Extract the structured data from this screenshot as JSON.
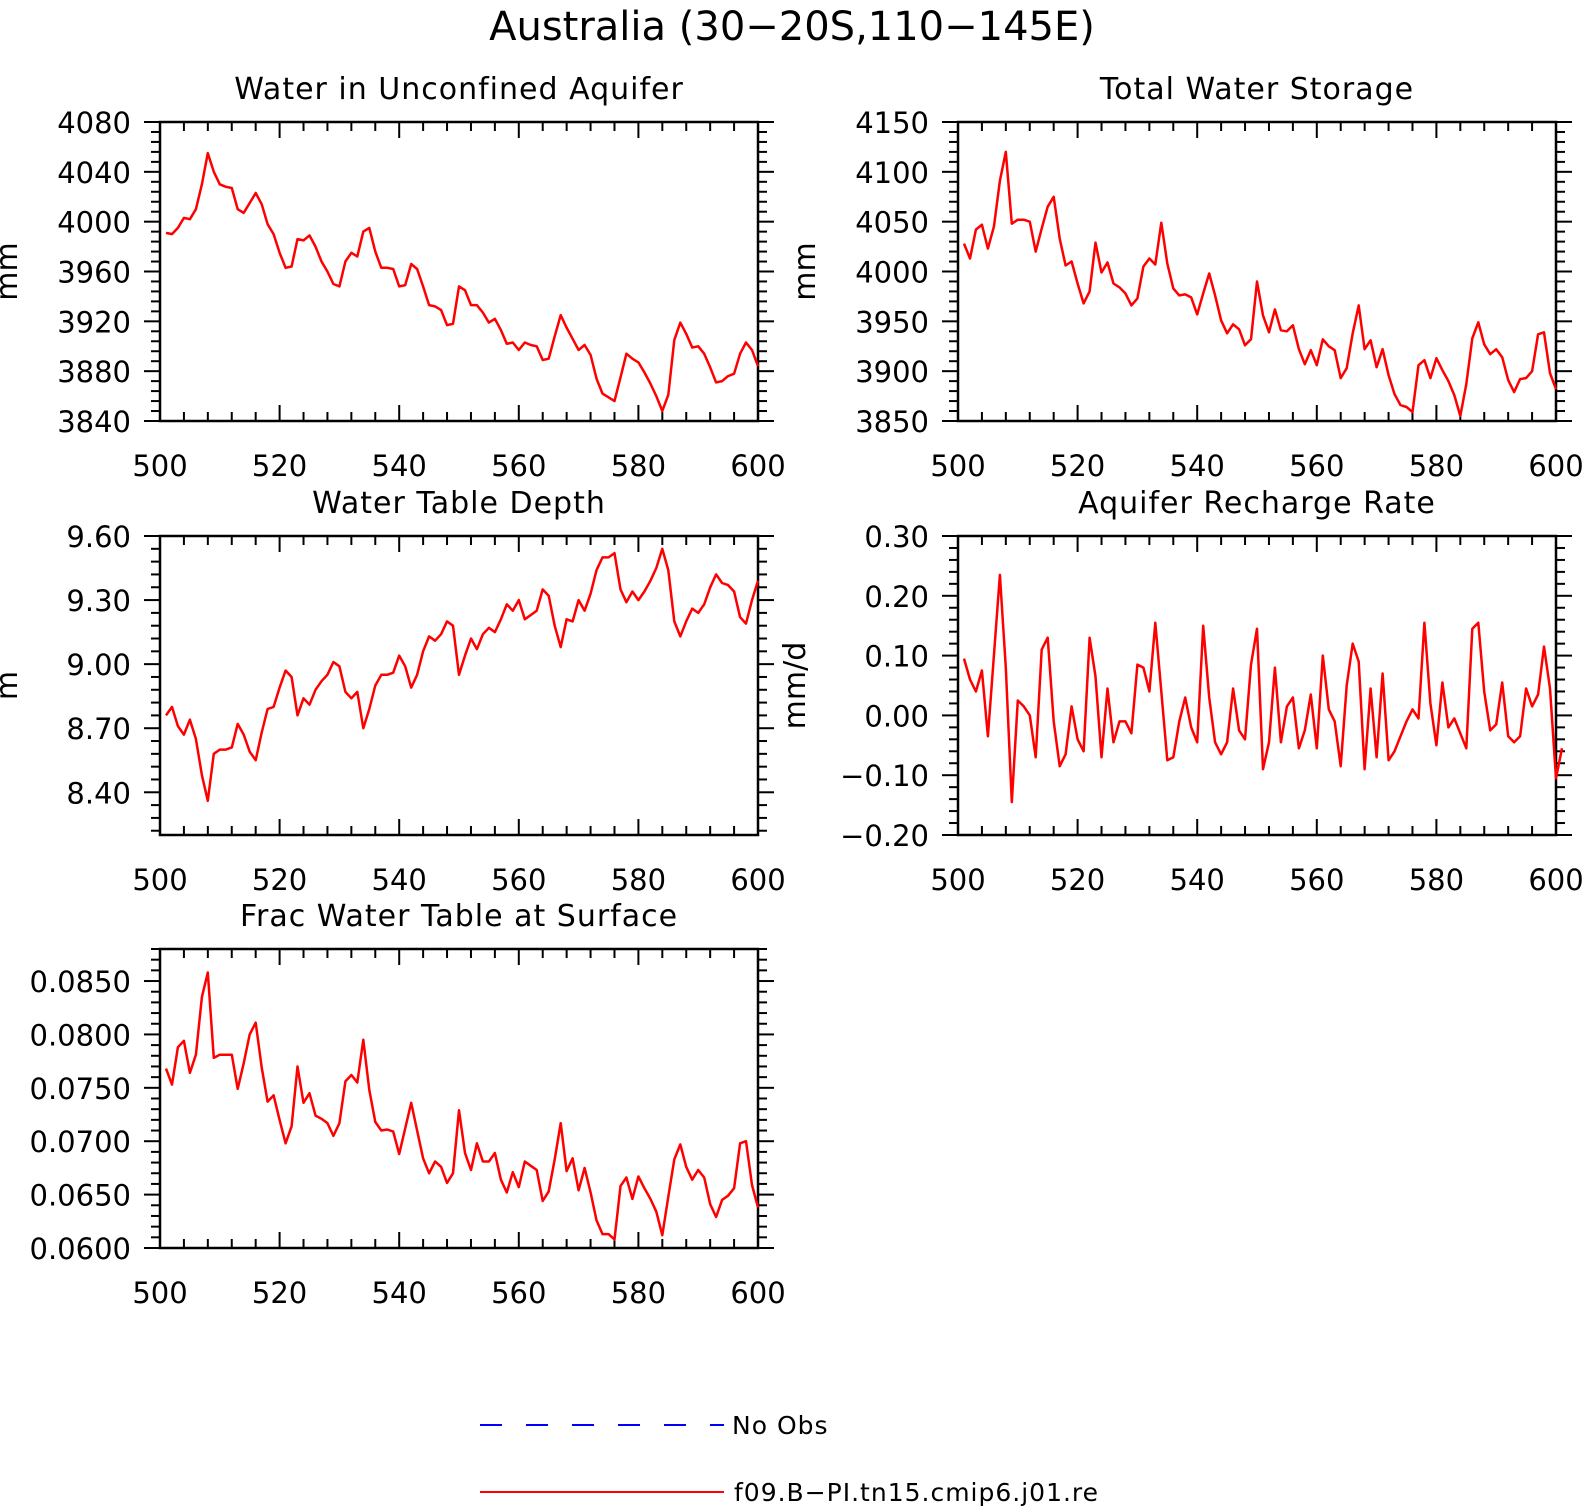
{
  "figure": {
    "title": "Australia (30−20S,110−145E)"
  },
  "legend": {
    "entries": [
      {
        "label": "No Obs",
        "color": "#0000ff",
        "style": "dashed"
      },
      {
        "label": "f09.B−PI.tn15.cmip6.j01.re",
        "color": "#ff0000",
        "style": "solid"
      }
    ]
  },
  "chart_data": [
    {
      "type": "line",
      "title": "Water in Unconfined Aquifer",
      "ylabel": "mm",
      "xlabel": "",
      "xlim": [
        500,
        600
      ],
      "ylim": [
        3840,
        4080
      ],
      "xticks": [
        500,
        520,
        540,
        560,
        580,
        600
      ],
      "yticks": [
        "3840",
        "3880",
        "3920",
        "3960",
        "4000",
        "4040",
        "4080"
      ],
      "x_start": 501,
      "series": [
        {
          "color": "#ff0000",
          "values": [
            3991,
            3990,
            3995,
            4003,
            4002,
            4010,
            4030,
            4055,
            4040,
            4030,
            4028,
            4027,
            4010,
            4007,
            4015,
            4023,
            4014,
            3998,
            3990,
            3975,
            3963,
            3964,
            3986,
            3985,
            3989,
            3980,
            3968,
            3960,
            3950,
            3948,
            3968,
            3975,
            3972,
            3992,
            3995,
            3976,
            3963,
            3963,
            3962,
            3948,
            3949,
            3966,
            3962,
            3948,
            3933,
            3932,
            3929,
            3917,
            3918,
            3948,
            3945,
            3933,
            3933,
            3927,
            3919,
            3922,
            3913,
            3902,
            3903,
            3897,
            3903,
            3901,
            3900,
            3889,
            3890,
            3908,
            3925,
            3915,
            3906,
            3897,
            3901,
            3893,
            3874,
            3862,
            3859,
            3856,
            3875,
            3894,
            3890,
            3887,
            3879,
            3870,
            3860,
            3848,
            3861,
            3905,
            3919,
            3910,
            3899,
            3900,
            3894,
            3883,
            3871,
            3872,
            3876,
            3878,
            3894,
            3903,
            3897,
            3884
          ]
        }
      ]
    },
    {
      "type": "line",
      "title": "Total Water Storage",
      "ylabel": "mm",
      "xlabel": "",
      "xlim": [
        500,
        600
      ],
      "ylim": [
        3850,
        4150
      ],
      "xticks": [
        500,
        520,
        540,
        560,
        580,
        600
      ],
      "yticks": [
        "3850",
        "3900",
        "3950",
        "4000",
        "4050",
        "4100",
        "4150"
      ],
      "x_start": 501,
      "series": [
        {
          "color": "#ff0000",
          "values": [
            4028,
            4013,
            4042,
            4047,
            4023,
            4045,
            4091,
            4120,
            4048,
            4052,
            4052,
            4050,
            4020,
            4043,
            4065,
            4075,
            4033,
            4006,
            4010,
            3988,
            3968,
            3980,
            4029,
            3999,
            4009,
            3988,
            3984,
            3978,
            3966,
            3973,
            4005,
            4013,
            4007,
            4049,
            4008,
            3983,
            3976,
            3977,
            3974,
            3957,
            3978,
            3998,
            3976,
            3951,
            3938,
            3947,
            3942,
            3926,
            3932,
            3990,
            3956,
            3939,
            3962,
            3941,
            3940,
            3946,
            3922,
            3907,
            3921,
            3906,
            3932,
            3925,
            3921,
            3893,
            3903,
            3938,
            3966,
            3922,
            3931,
            3904,
            3922,
            3896,
            3877,
            3866,
            3864,
            3859,
            3906,
            3911,
            3893,
            3913,
            3901,
            3890,
            3876,
            3855,
            3887,
            3933,
            3949,
            3927,
            3917,
            3922,
            3914,
            3891,
            3879,
            3892,
            3893,
            3900,
            3937,
            3939,
            3898,
            3882
          ]
        }
      ]
    },
    {
      "type": "line",
      "title": "Water Table Depth",
      "ylabel": "m",
      "xlabel": "",
      "xlim": [
        500,
        600
      ],
      "ylim": [
        8.2,
        9.6
      ],
      "xticks": [
        500,
        520,
        540,
        560,
        580,
        600
      ],
      "yticks": [
        "8.40",
        "8.70",
        "9.00",
        "9.30",
        "9.60"
      ],
      "x_start": 501,
      "series": [
        {
          "color": "#ff0000",
          "values": [
            8.76,
            8.8,
            8.71,
            8.67,
            8.74,
            8.65,
            8.48,
            8.36,
            8.58,
            8.6,
            8.6,
            8.61,
            8.72,
            8.67,
            8.59,
            8.55,
            8.68,
            8.79,
            8.8,
            8.89,
            8.97,
            8.94,
            8.76,
            8.84,
            8.81,
            8.88,
            8.92,
            8.95,
            9.01,
            8.99,
            8.87,
            8.84,
            8.87,
            8.7,
            8.79,
            8.9,
            8.95,
            8.95,
            8.96,
            9.04,
            8.99,
            8.89,
            8.95,
            9.06,
            9.13,
            9.11,
            9.14,
            9.2,
            9.18,
            8.95,
            9.04,
            9.12,
            9.07,
            9.14,
            9.17,
            9.15,
            9.21,
            9.28,
            9.25,
            9.3,
            9.21,
            9.23,
            9.25,
            9.35,
            9.32,
            9.18,
            9.08,
            9.21,
            9.2,
            9.3,
            9.25,
            9.33,
            9.44,
            9.5,
            9.5,
            9.52,
            9.35,
            9.29,
            9.34,
            9.3,
            9.34,
            9.39,
            9.45,
            9.54,
            9.44,
            9.2,
            9.13,
            9.2,
            9.26,
            9.24,
            9.28,
            9.36,
            9.42,
            9.38,
            9.37,
            9.34,
            9.22,
            9.19,
            9.3,
            9.39
          ]
        }
      ]
    },
    {
      "type": "line",
      "title": "Aquifer Recharge Rate",
      "ylabel": "mm/d",
      "xlabel": "",
      "xlim": [
        500,
        600
      ],
      "ylim": [
        -0.2,
        0.3
      ],
      "xticks": [
        500,
        520,
        540,
        560,
        580,
        600
      ],
      "yticks": [
        "−0.20",
        "−0.10",
        "0.00",
        "0.10",
        "0.20",
        "0.30"
      ],
      "x_start": 501,
      "series": [
        {
          "color": "#ff0000",
          "values": [
            0.095,
            0.06,
            0.04,
            0.075,
            -0.035,
            0.1,
            0.235,
            0.08,
            -0.145,
            0.025,
            0.015,
            0.0,
            -0.07,
            0.11,
            0.13,
            -0.01,
            -0.085,
            -0.065,
            0.015,
            -0.04,
            -0.06,
            0.13,
            0.065,
            -0.07,
            0.045,
            -0.045,
            -0.01,
            -0.01,
            -0.03,
            0.085,
            0.08,
            0.04,
            0.155,
            0.04,
            -0.075,
            -0.07,
            -0.01,
            0.03,
            -0.02,
            -0.045,
            0.15,
            0.03,
            -0.045,
            -0.065,
            -0.045,
            0.045,
            -0.025,
            -0.04,
            0.085,
            0.145,
            -0.09,
            -0.045,
            0.08,
            -0.045,
            0.015,
            0.03,
            -0.055,
            -0.025,
            0.035,
            -0.055,
            0.1,
            0.01,
            -0.01,
            -0.085,
            0.05,
            0.12,
            0.09,
            -0.09,
            0.045,
            -0.07,
            0.07,
            -0.075,
            -0.06,
            -0.035,
            -0.01,
            0.01,
            -0.005,
            0.155,
            0.02,
            -0.05,
            0.055,
            -0.02,
            -0.005,
            -0.03,
            -0.055,
            0.145,
            0.155,
            0.04,
            -0.025,
            -0.015,
            0.055,
            -0.035,
            -0.045,
            -0.035,
            0.045,
            0.015,
            0.035,
            0.115,
            0.045,
            -0.105,
            -0.055
          ]
        }
      ]
    },
    {
      "type": "line",
      "title": "Frac Water Table at Surface",
      "ylabel": "",
      "xlabel": "",
      "xlim": [
        500,
        600
      ],
      "ylim": [
        0.06,
        0.088
      ],
      "xticks": [
        500,
        520,
        540,
        560,
        580,
        600
      ],
      "yticks": [
        "0.0600",
        "0.0650",
        "0.0700",
        "0.0750",
        "0.0800",
        "0.0850"
      ],
      "x_start": 501,
      "series": [
        {
          "color": "#ff0000",
          "values": [
            0.0768,
            0.0753,
            0.0788,
            0.0794,
            0.0764,
            0.0781,
            0.0835,
            0.0858,
            0.0778,
            0.0781,
            0.0781,
            0.0781,
            0.0749,
            0.0773,
            0.08,
            0.0811,
            0.0769,
            0.0737,
            0.0743,
            0.072,
            0.0698,
            0.0714,
            0.077,
            0.0736,
            0.0745,
            0.0724,
            0.0721,
            0.0717,
            0.0705,
            0.0717,
            0.0756,
            0.0762,
            0.0755,
            0.0795,
            0.0748,
            0.0718,
            0.071,
            0.0711,
            0.0709,
            0.0688,
            0.0712,
            0.0736,
            0.071,
            0.0684,
            0.067,
            0.0681,
            0.0676,
            0.0661,
            0.067,
            0.0729,
            0.0689,
            0.0673,
            0.0698,
            0.0681,
            0.0681,
            0.0689,
            0.0664,
            0.0652,
            0.0671,
            0.0657,
            0.0681,
            0.0677,
            0.0673,
            0.0644,
            0.0653,
            0.0683,
            0.0717,
            0.0672,
            0.0684,
            0.0654,
            0.0675,
            0.0652,
            0.0626,
            0.0613,
            0.0613,
            0.0608,
            0.0658,
            0.0666,
            0.0646,
            0.0667,
            0.0656,
            0.0646,
            0.0634,
            0.0612,
            0.0648,
            0.0683,
            0.0697,
            0.0676,
            0.0664,
            0.0673,
            0.0666,
            0.0641,
            0.0629,
            0.0645,
            0.0649,
            0.0656,
            0.0698,
            0.07,
            0.0659,
            0.0638
          ]
        }
      ]
    }
  ]
}
